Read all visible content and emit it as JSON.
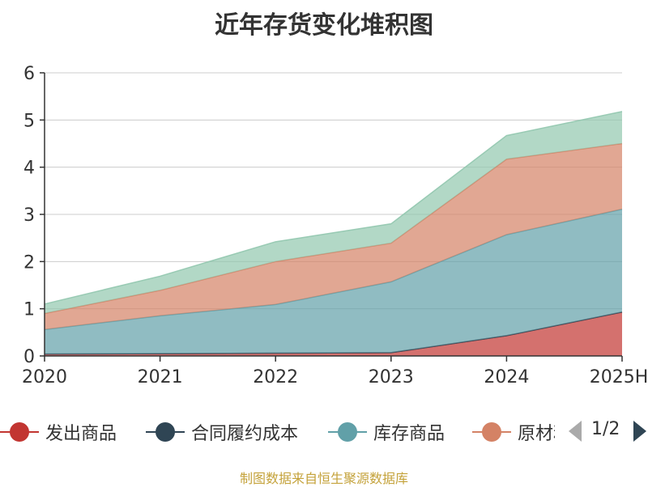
{
  "chart_data": {
    "type": "area",
    "stacked": true,
    "title": "近年存货变化堆积图",
    "x": [
      "2020",
      "2021",
      "2022",
      "2023",
      "2024",
      "2025H"
    ],
    "ylim": [
      0,
      6
    ],
    "yticks": [
      "0",
      "1",
      "2",
      "3",
      "4",
      "5",
      "6"
    ],
    "grid": true,
    "series": [
      {
        "name": "发出商品",
        "color": "#c23531",
        "values": [
          0.04,
          0.05,
          0.06,
          0.07,
          0.43,
          0.93
        ]
      },
      {
        "name": "合同履约成本",
        "color": "#2f4554",
        "values": [
          0,
          0,
          0,
          0,
          0,
          0
        ]
      },
      {
        "name": "库存商品",
        "color": "#61a0a8",
        "values": [
          0.52,
          0.8,
          1.03,
          1.5,
          2.14,
          2.18
        ]
      },
      {
        "name": "原材料",
        "color": "#d48265",
        "values": [
          0.34,
          0.54,
          0.91,
          0.82,
          1.6,
          1.39
        ]
      },
      {
        "name": "",
        "color": "#91c7ae",
        "values": [
          0.2,
          0.3,
          0.42,
          0.41,
          0.5,
          0.68
        ]
      }
    ],
    "legend_position": "bottom"
  },
  "legend": {
    "items": [
      {
        "label": "发出商品",
        "color": "#c23531"
      },
      {
        "label": "合同履约成本",
        "color": "#2f4554"
      },
      {
        "label": "库存商品",
        "color": "#61a0a8"
      },
      {
        "label": "原材料",
        "color": "#d48265"
      }
    ],
    "pager": "1/2"
  },
  "source_note": "制图数据来自恒生聚源数据库"
}
